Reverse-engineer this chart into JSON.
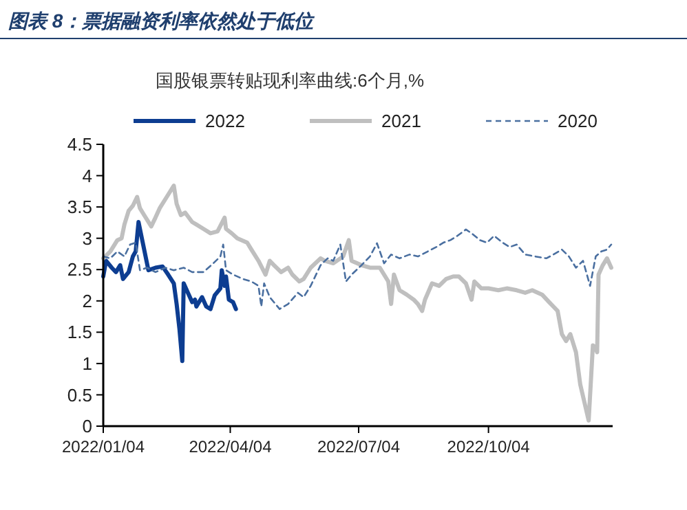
{
  "chart_data": {
    "type": "line",
    "title": "图表 8：票据融资利率依然处于低位",
    "subtitle": "国股银票转贴现利率曲线:6个月,%",
    "legend": "top",
    "grid": false,
    "xlim": [
      "2022-01-04",
      "2022-12-31"
    ],
    "xticks": [
      {
        "value": "2022-01-04",
        "label": "2022/01/04"
      },
      {
        "value": "2022-04-04",
        "label": "2022/04/04"
      },
      {
        "value": "2022-07-04",
        "label": "2022/07/04"
      },
      {
        "value": "2022-10-04",
        "label": "2022/10/04"
      }
    ],
    "ylim": [
      0,
      4.5
    ],
    "yticks": [
      0,
      0.5,
      1,
      1.5,
      2,
      2.5,
      3,
      3.5,
      4,
      4.5
    ],
    "series": [
      {
        "name": "2022",
        "color": "#0d3d91",
        "line_style": "solid",
        "x": [
          "2022-01-04",
          "2022-01-06",
          "2022-01-10",
          "2022-01-13",
          "2022-01-16",
          "2022-01-18",
          "2022-01-22",
          "2022-01-25",
          "2022-01-27",
          "2022-01-29",
          "2022-02-01",
          "2022-02-05",
          "2022-02-10",
          "2022-02-15",
          "2022-02-19",
          "2022-02-23",
          "2022-02-25",
          "2022-02-27",
          "2022-03-01",
          "2022-03-02",
          "2022-03-05",
          "2022-03-08",
          "2022-03-10",
          "2022-03-11",
          "2022-03-15",
          "2022-03-18",
          "2022-03-21",
          "2022-03-24",
          "2022-03-28",
          "2022-03-29",
          "2022-03-31",
          "2022-04-01",
          "2022-04-03",
          "2022-04-06",
          "2022-04-08"
        ],
        "values": [
          2.39,
          2.64,
          2.53,
          2.46,
          2.57,
          2.35,
          2.46,
          2.71,
          2.79,
          3.26,
          2.93,
          2.49,
          2.53,
          2.55,
          2.42,
          2.28,
          1.95,
          1.55,
          1.04,
          2.28,
          2.13,
          1.98,
          2.02,
          1.91,
          2.06,
          1.91,
          1.87,
          2.09,
          2.2,
          2.49,
          2.24,
          2.39,
          2.02,
          1.98,
          1.87
        ]
      },
      {
        "name": "2021",
        "color": "#bfbfbf",
        "line_style": "solid",
        "x": [
          "2022-01-04",
          "2022-01-09",
          "2022-01-14",
          "2022-01-17",
          "2022-01-19",
          "2022-01-22",
          "2022-01-25",
          "2022-01-28",
          "2022-01-30",
          "2022-02-02",
          "2022-02-07",
          "2022-02-10",
          "2022-02-13",
          "2022-02-18",
          "2022-02-23",
          "2022-02-25",
          "2022-02-28",
          "2022-03-03",
          "2022-03-08",
          "2022-03-11",
          "2022-03-16",
          "2022-03-21",
          "2022-03-26",
          "2022-03-31",
          "2022-04-01",
          "2022-04-05",
          "2022-04-09",
          "2022-04-16",
          "2022-04-19",
          "2022-04-24",
          "2022-04-29",
          "2022-05-02",
          "2022-05-05",
          "2022-05-10",
          "2022-05-15",
          "2022-05-18",
          "2022-05-23",
          "2022-05-26",
          "2022-05-31",
          "2022-06-07",
          "2022-06-10",
          "2022-06-16",
          "2022-06-23",
          "2022-06-27",
          "2022-06-29",
          "2022-07-06",
          "2022-07-12",
          "2022-07-19",
          "2022-07-22",
          "2022-07-25",
          "2022-07-27",
          "2022-07-29",
          "2022-08-02",
          "2022-08-07",
          "2022-08-12",
          "2022-08-15",
          "2022-08-18",
          "2022-08-20",
          "2022-08-25",
          "2022-08-30",
          "2022-09-04",
          "2022-09-09",
          "2022-09-13",
          "2022-09-18",
          "2022-09-22",
          "2022-09-24",
          "2022-09-29",
          "2022-10-04",
          "2022-10-11",
          "2022-10-17",
          "2022-10-24",
          "2022-10-30",
          "2022-11-04",
          "2022-11-11",
          "2022-11-16",
          "2022-11-19",
          "2022-11-22",
          "2022-11-25",
          "2022-11-28",
          "2022-12-01",
          "2022-12-05",
          "2022-12-08",
          "2022-12-11",
          "2022-12-14",
          "2022-12-17",
          "2022-12-19",
          "2022-12-20",
          "2022-12-21",
          "2022-12-24",
          "2022-12-27",
          "2022-12-30"
        ],
        "values": [
          2.68,
          2.79,
          2.97,
          3.0,
          3.22,
          3.44,
          3.52,
          3.66,
          3.48,
          3.37,
          3.19,
          3.33,
          3.48,
          3.66,
          3.84,
          3.55,
          3.37,
          3.41,
          3.26,
          3.22,
          3.15,
          3.08,
          3.11,
          3.33,
          3.15,
          3.08,
          3.0,
          2.93,
          2.82,
          2.64,
          2.42,
          2.64,
          2.57,
          2.46,
          2.53,
          2.42,
          2.31,
          2.35,
          2.53,
          2.68,
          2.64,
          2.6,
          2.71,
          2.97,
          2.64,
          2.57,
          2.53,
          2.53,
          2.42,
          2.31,
          1.95,
          2.42,
          2.17,
          2.1,
          2.02,
          1.95,
          1.84,
          2.02,
          2.28,
          2.24,
          2.35,
          2.39,
          2.39,
          2.28,
          2.02,
          2.31,
          2.2,
          2.2,
          2.17,
          2.2,
          2.17,
          2.13,
          2.17,
          2.1,
          1.98,
          1.91,
          1.84,
          1.47,
          1.36,
          1.47,
          1.18,
          0.67,
          0.38,
          0.09,
          1.29,
          1.25,
          1.18,
          2.42,
          2.57,
          2.68,
          2.53
        ]
      },
      {
        "name": "2020",
        "color": "#4a6fa0",
        "line_style": "dashed",
        "x": [
          "2022-01-04",
          "2022-01-09",
          "2022-01-14",
          "2022-01-19",
          "2022-01-23",
          "2022-01-27",
          "2022-01-30",
          "2022-02-04",
          "2022-02-10",
          "2022-02-17",
          "2022-02-23",
          "2022-03-02",
          "2022-03-08",
          "2022-03-16",
          "2022-03-23",
          "2022-03-28",
          "2022-03-30",
          "2022-04-01",
          "2022-04-06",
          "2022-04-13",
          "2022-04-19",
          "2022-04-24",
          "2022-04-26",
          "2022-04-28",
          "2022-05-02",
          "2022-05-09",
          "2022-05-15",
          "2022-05-22",
          "2022-05-26",
          "2022-05-31",
          "2022-06-07",
          "2022-06-12",
          "2022-06-16",
          "2022-06-21",
          "2022-06-25",
          "2022-06-29",
          "2022-07-06",
          "2022-07-12",
          "2022-07-17",
          "2022-07-22",
          "2022-07-27",
          "2022-08-02",
          "2022-08-09",
          "2022-08-15",
          "2022-08-22",
          "2022-08-28",
          "2022-09-02",
          "2022-09-07",
          "2022-09-12",
          "2022-09-18",
          "2022-09-22",
          "2022-09-28",
          "2022-10-03",
          "2022-10-08",
          "2022-10-14",
          "2022-10-19",
          "2022-10-24",
          "2022-10-30",
          "2022-11-06",
          "2022-11-14",
          "2022-11-19",
          "2022-11-25",
          "2022-11-30",
          "2022-12-05",
          "2022-12-10",
          "2022-12-15",
          "2022-12-19",
          "2022-12-23",
          "2022-12-27",
          "2022-12-30"
        ],
        "values": [
          2.71,
          2.68,
          2.79,
          2.71,
          2.9,
          2.93,
          2.49,
          2.53,
          2.46,
          2.53,
          2.49,
          2.53,
          2.46,
          2.46,
          2.6,
          2.71,
          2.9,
          2.49,
          2.42,
          2.35,
          2.31,
          2.24,
          1.91,
          2.28,
          2.06,
          1.87,
          1.95,
          2.13,
          2.06,
          2.24,
          2.57,
          2.68,
          2.64,
          2.9,
          2.31,
          2.42,
          2.57,
          2.71,
          2.92,
          2.6,
          2.74,
          2.68,
          2.74,
          2.71,
          2.79,
          2.86,
          2.93,
          2.97,
          3.04,
          3.14,
          3.08,
          2.97,
          2.93,
          3.04,
          2.93,
          2.86,
          2.9,
          2.74,
          2.71,
          2.68,
          2.74,
          2.82,
          2.71,
          2.53,
          2.64,
          2.24,
          2.71,
          2.79,
          2.82,
          2.9
        ]
      }
    ]
  }
}
